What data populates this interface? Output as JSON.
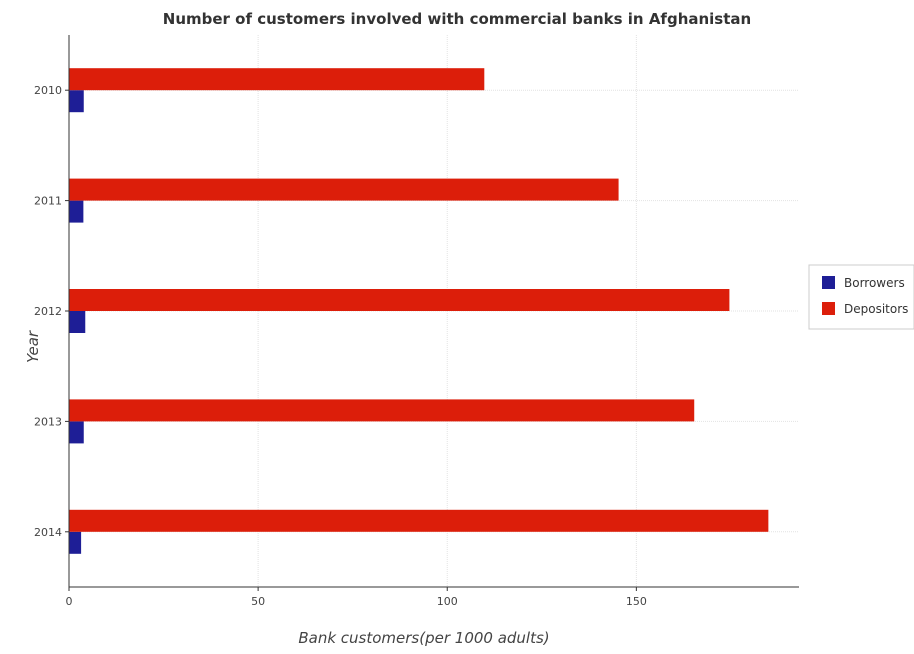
{
  "chart_data": {
    "type": "bar",
    "orientation": "horizontal",
    "title": "Number of customers involved with commercial banks in Afghanistan",
    "xlabel": "Bank customers(per 1000 adults)",
    "ylabel": "Year",
    "categories": [
      "2010",
      "2011",
      "2012",
      "2013",
      "2014"
    ],
    "xlim": [
      0,
      193
    ],
    "xticks": [
      0,
      50,
      100,
      150
    ],
    "grid": true,
    "legend_position": "right",
    "series": [
      {
        "name": "Borrowers",
        "color": "#1e1e96",
        "values": [
          3.9,
          3.8,
          4.3,
          3.9,
          3.2
        ]
      },
      {
        "name": "Depositors",
        "color": "#dc1e0a",
        "values": [
          109.8,
          145.3,
          174.6,
          165.3,
          184.9
        ]
      }
    ]
  }
}
